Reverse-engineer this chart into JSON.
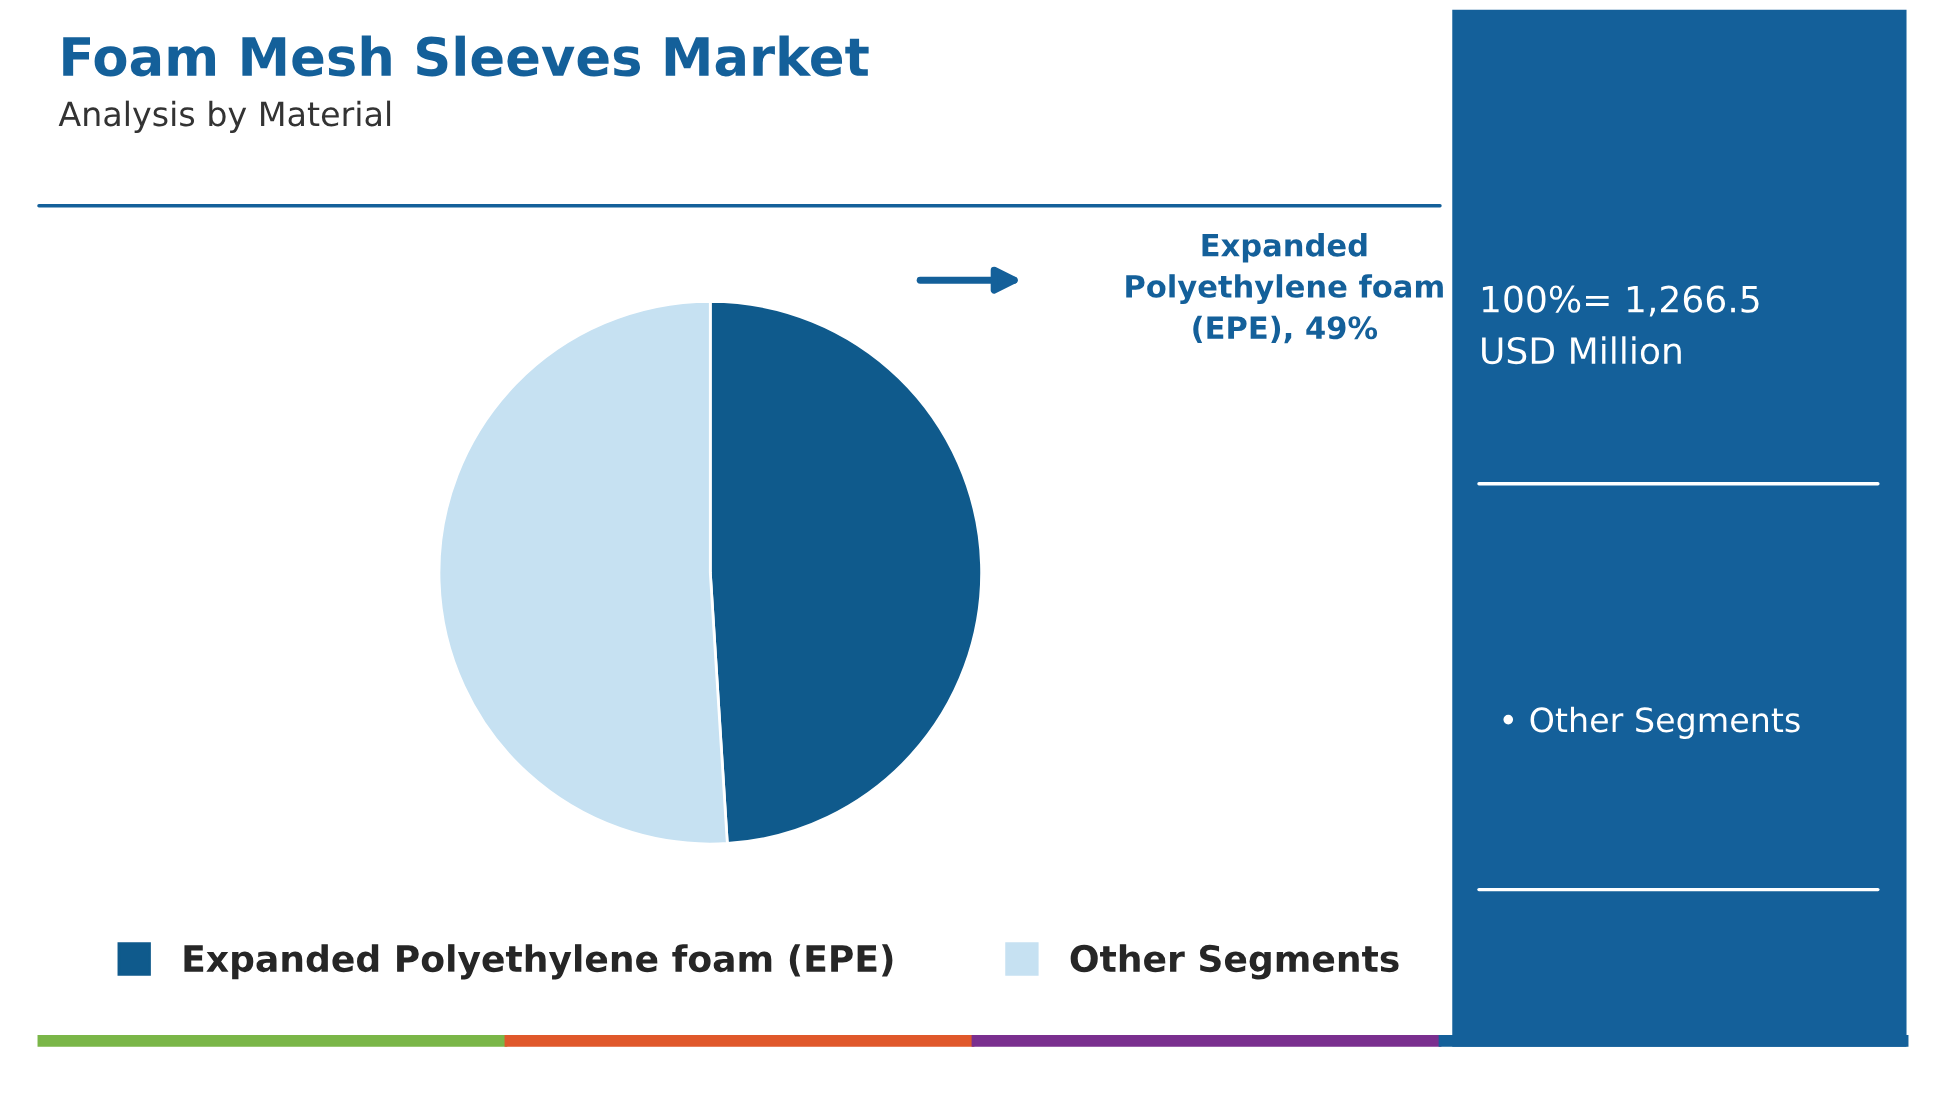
{
  "chart_data": {
    "type": "pie",
    "title": "Foam Mesh Sleeves Market",
    "subtitle": "Analysis by Material",
    "categories": [
      "Expanded Polyethylene foam (EPE)",
      "Other Segments"
    ],
    "values": [
      49,
      51
    ],
    "colors": [
      "#0f5a8c",
      "#c6e1f2"
    ],
    "legend": "bottom",
    "annotations": [
      "Expanded Polyethylene foam (EPE), 49%",
      "100%= 1,266.5 USD Million",
      "• Other Segments"
    ]
  }
}
